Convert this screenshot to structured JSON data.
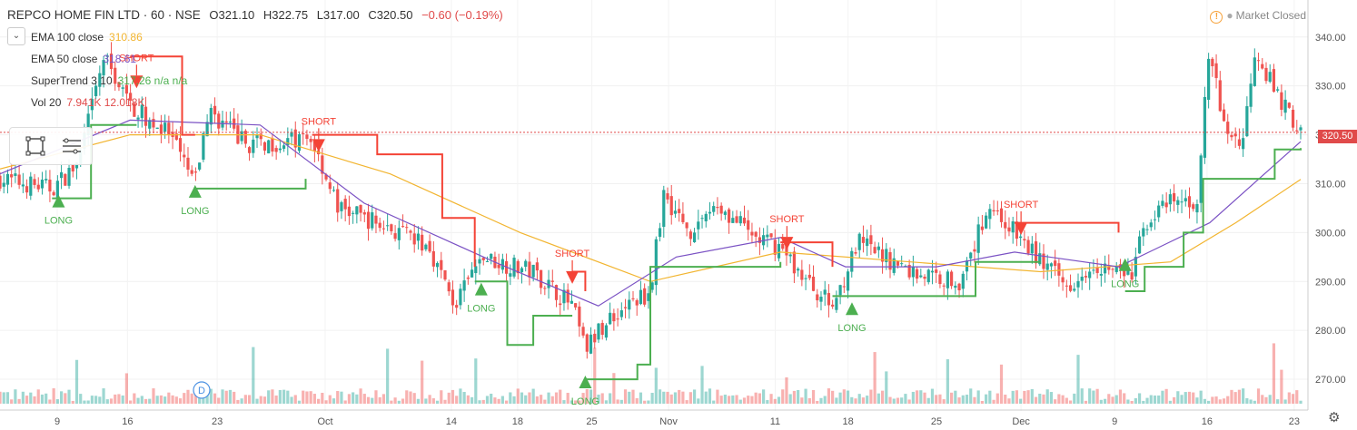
{
  "header": {
    "symbol": "REPCO HOME FIN LTD · 60 · NSE",
    "open": "O321.10",
    "high": "H322.75",
    "low": "L317.00",
    "close": "C320.50",
    "change": "−0.60 (−0.19%)"
  },
  "indicators": [
    {
      "name": "EMA 100 close",
      "value": "310.86",
      "color": "#f2b531"
    },
    {
      "name": "EMA 50 close",
      "value": "318.61",
      "color": "#7b52c4"
    },
    {
      "name": "SuperTrend 3 10",
      "value": "317.26 n/a n/a",
      "color": "#4caf50"
    },
    {
      "name": "Vol 20",
      "value": "7.941K 12.018K",
      "color": "#e04a4a"
    }
  ],
  "status": {
    "market": "Market Closed"
  },
  "last_price": "320.50",
  "event_marker": "D",
  "colors": {
    "up": "#26a69a",
    "down": "#ef5350",
    "long": "#4caf50",
    "short": "#f44336",
    "ema100": "#f2b531",
    "ema50": "#7b52c4"
  },
  "icons": [
    "collapse-chevron-icon",
    "rectangle-tool-icon",
    "menu-lines-icon",
    "warning-icon",
    "settings-gear-icon"
  ],
  "chart_data": {
    "type": "candlestick",
    "ylim": [
      265,
      342
    ],
    "y_ticks": [
      "340.00",
      "330.00",
      "320.00",
      "310.00",
      "300.00",
      "290.00",
      "280.00",
      "270.00"
    ],
    "x_ticks": [
      "9",
      "16",
      "23",
      "Oct",
      "14",
      "18",
      "25",
      "Nov",
      "11",
      "18",
      "25",
      "Dec",
      "9",
      "16",
      "23"
    ],
    "price_path": [
      {
        "x": 0,
        "y": 311
      },
      {
        "x": 0.04,
        "y": 309
      },
      {
        "x": 0.06,
        "y": 314
      },
      {
        "x": 0.08,
        "y": 336
      },
      {
        "x": 0.1,
        "y": 326
      },
      {
        "x": 0.13,
        "y": 320
      },
      {
        "x": 0.15,
        "y": 310
      },
      {
        "x": 0.16,
        "y": 325
      },
      {
        "x": 0.19,
        "y": 318
      },
      {
        "x": 0.24,
        "y": 319
      },
      {
        "x": 0.26,
        "y": 305
      },
      {
        "x": 0.29,
        "y": 302
      },
      {
        "x": 0.33,
        "y": 297
      },
      {
        "x": 0.35,
        "y": 285
      },
      {
        "x": 0.37,
        "y": 295
      },
      {
        "x": 0.41,
        "y": 292
      },
      {
        "x": 0.44,
        "y": 285
      },
      {
        "x": 0.45,
        "y": 276
      },
      {
        "x": 0.47,
        "y": 283
      },
      {
        "x": 0.5,
        "y": 288
      },
      {
        "x": 0.51,
        "y": 308
      },
      {
        "x": 0.53,
        "y": 300
      },
      {
        "x": 0.55,
        "y": 306
      },
      {
        "x": 0.58,
        "y": 299
      },
      {
        "x": 0.6,
        "y": 297
      },
      {
        "x": 0.62,
        "y": 290
      },
      {
        "x": 0.64,
        "y": 285
      },
      {
        "x": 0.66,
        "y": 298
      },
      {
        "x": 0.7,
        "y": 292
      },
      {
        "x": 0.74,
        "y": 290
      },
      {
        "x": 0.76,
        "y": 306
      },
      {
        "x": 0.79,
        "y": 297
      },
      {
        "x": 0.82,
        "y": 289
      },
      {
        "x": 0.84,
        "y": 294
      },
      {
        "x": 0.87,
        "y": 291
      },
      {
        "x": 0.88,
        "y": 302
      },
      {
        "x": 0.9,
        "y": 306
      },
      {
        "x": 0.92,
        "y": 306
      },
      {
        "x": 0.93,
        "y": 338
      },
      {
        "x": 0.94,
        "y": 322
      },
      {
        "x": 0.955,
        "y": 318
      },
      {
        "x": 0.965,
        "y": 338
      },
      {
        "x": 0.98,
        "y": 329
      },
      {
        "x": 1.0,
        "y": 320.5
      }
    ],
    "ema100": [
      {
        "x": 0,
        "y": 313
      },
      {
        "x": 0.1,
        "y": 320
      },
      {
        "x": 0.2,
        "y": 320
      },
      {
        "x": 0.3,
        "y": 312
      },
      {
        "x": 0.4,
        "y": 300
      },
      {
        "x": 0.5,
        "y": 290
      },
      {
        "x": 0.6,
        "y": 296
      },
      {
        "x": 0.7,
        "y": 294
      },
      {
        "x": 0.8,
        "y": 292
      },
      {
        "x": 0.9,
        "y": 294
      },
      {
        "x": 0.95,
        "y": 302
      },
      {
        "x": 1.0,
        "y": 310.86
      }
    ],
    "ema50": [
      {
        "x": 0,
        "y": 312
      },
      {
        "x": 0.1,
        "y": 323
      },
      {
        "x": 0.2,
        "y": 322
      },
      {
        "x": 0.28,
        "y": 306
      },
      {
        "x": 0.38,
        "y": 294
      },
      {
        "x": 0.46,
        "y": 285
      },
      {
        "x": 0.52,
        "y": 295
      },
      {
        "x": 0.6,
        "y": 299
      },
      {
        "x": 0.65,
        "y": 293
      },
      {
        "x": 0.72,
        "y": 293
      },
      {
        "x": 0.78,
        "y": 296
      },
      {
        "x": 0.86,
        "y": 293
      },
      {
        "x": 0.93,
        "y": 302
      },
      {
        "x": 1.0,
        "y": 318.61
      }
    ],
    "supertrend_long": [
      [
        {
          "x": 0.04,
          "y": 307
        },
        {
          "x": 0.065,
          "y": 307
        },
        {
          "x": 0.07,
          "y": 322
        },
        {
          "x": 0.105,
          "y": 322
        }
      ],
      [
        {
          "x": 0.15,
          "y": 309
        },
        {
          "x": 0.235,
          "y": 311
        }
      ],
      [
        {
          "x": 0.365,
          "y": 290
        },
        {
          "x": 0.39,
          "y": 277
        },
        {
          "x": 0.41,
          "y": 283
        },
        {
          "x": 0.44,
          "y": 283
        }
      ],
      [
        {
          "x": 0.45,
          "y": 270
        },
        {
          "x": 0.49,
          "y": 273
        },
        {
          "x": 0.5,
          "y": 293
        },
        {
          "x": 0.6,
          "y": 294
        }
      ],
      [
        {
          "x": 0.64,
          "y": 287
        },
        {
          "x": 0.74,
          "y": 287
        },
        {
          "x": 0.75,
          "y": 294
        },
        {
          "x": 0.8,
          "y": 294
        }
      ],
      [
        {
          "x": 0.865,
          "y": 288
        },
        {
          "x": 0.88,
          "y": 293
        },
        {
          "x": 0.91,
          "y": 300
        },
        {
          "x": 0.925,
          "y": 311
        },
        {
          "x": 0.98,
          "y": 317
        },
        {
          "x": 1.0,
          "y": 317.26
        }
      ]
    ],
    "supertrend_short": [
      [
        {
          "x": 0.1,
          "y": 336
        },
        {
          "x": 0.13,
          "y": 336
        },
        {
          "x": 0.14,
          "y": 320
        },
        {
          "x": 0.15,
          "y": 320
        }
      ],
      [
        {
          "x": 0.24,
          "y": 320
        },
        {
          "x": 0.29,
          "y": 316
        },
        {
          "x": 0.34,
          "y": 303
        },
        {
          "x": 0.365,
          "y": 293
        }
      ],
      [
        {
          "x": 0.44,
          "y": 292
        },
        {
          "x": 0.45,
          "y": 288
        }
      ],
      [
        {
          "x": 0.6,
          "y": 298
        },
        {
          "x": 0.625,
          "y": 298
        },
        {
          "x": 0.64,
          "y": 293
        }
      ],
      [
        {
          "x": 0.78,
          "y": 302
        },
        {
          "x": 0.86,
          "y": 300
        }
      ]
    ],
    "signals": [
      {
        "label": "LONG",
        "x": 0.045,
        "y": 307
      },
      {
        "label": "LONG",
        "x": 0.15,
        "y": 309
      },
      {
        "label": "SHORT",
        "x": 0.105,
        "y": 331
      },
      {
        "label": "SHORT",
        "x": 0.245,
        "y": 318
      },
      {
        "label": "LONG",
        "x": 0.37,
        "y": 289
      },
      {
        "label": "SHORT",
        "x": 0.44,
        "y": 291
      },
      {
        "label": "LONG",
        "x": 0.45,
        "y": 270
      },
      {
        "label": "SHORT",
        "x": 0.605,
        "y": 298
      },
      {
        "label": "LONG",
        "x": 0.655,
        "y": 285
      },
      {
        "label": "SHORT",
        "x": 0.785,
        "y": 301
      },
      {
        "label": "LONG",
        "x": 0.865,
        "y": 294
      }
    ]
  }
}
